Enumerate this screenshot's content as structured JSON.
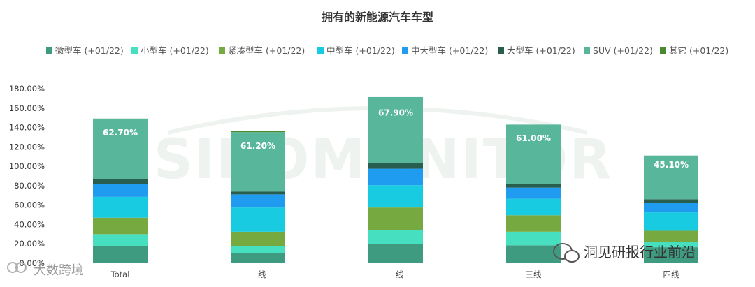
{
  "chart_data": {
    "type": "bar",
    "stacked": true,
    "title": "拥有的新能源汽车车型",
    "categories": [
      "Total",
      "一线",
      "二线",
      "三线",
      "四线"
    ],
    "ylim": [
      0,
      180
    ],
    "yticks": [
      "0.00%",
      "20.00%",
      "40.00%",
      "60.00%",
      "80.00%",
      "100.00%",
      "120.00%",
      "140.00%",
      "160.00%",
      "180.00%"
    ],
    "legend_position": "top",
    "grid": false,
    "series": [
      {
        "name": "微型车 (+01/22)",
        "color": "#3f9b7f",
        "values": [
          17.5,
          10.5,
          19.5,
          18.5,
          16.5
        ]
      },
      {
        "name": "小型车 (+01/22)",
        "color": "#46e0c0",
        "values": [
          12.5,
          7.5,
          15.0,
          14.0,
          5.5
        ]
      },
      {
        "name": "紧凑型车 (+01/22)",
        "color": "#77a941",
        "values": [
          17.0,
          14.5,
          23.0,
          17.0,
          11.5
        ]
      },
      {
        "name": "中型车 (+01/22)",
        "color": "#18cbe0",
        "values": [
          21.5,
          25.0,
          23.0,
          17.0,
          19.0
        ]
      },
      {
        "name": "中大型车 (+01/22)",
        "color": "#1f9bf0",
        "values": [
          13.0,
          13.5,
          17.0,
          11.5,
          10.0
        ]
      },
      {
        "name": "大型车 (+01/22)",
        "color": "#285e4e",
        "values": [
          5.0,
          3.0,
          6.0,
          4.0,
          3.5
        ]
      },
      {
        "name": "SUV (+01/22)",
        "color": "#58b79a",
        "values": [
          62.7,
          61.2,
          67.9,
          61.0,
          45.1
        ]
      },
      {
        "name": "其它 (+01/22)",
        "color": "#4a8a2e",
        "values": [
          0.0,
          1.5,
          0.0,
          0.0,
          0.0
        ]
      }
    ],
    "data_labels": {
      "series": "SUV (+01/22)",
      "values": [
        "62.70%",
        "61.20%",
        "67.90%",
        "61.00%",
        "45.10%"
      ]
    },
    "watermark": "SINOMONITOR"
  },
  "brand": {
    "left": "大数跨境",
    "right": "洞见研报行业前沿"
  }
}
